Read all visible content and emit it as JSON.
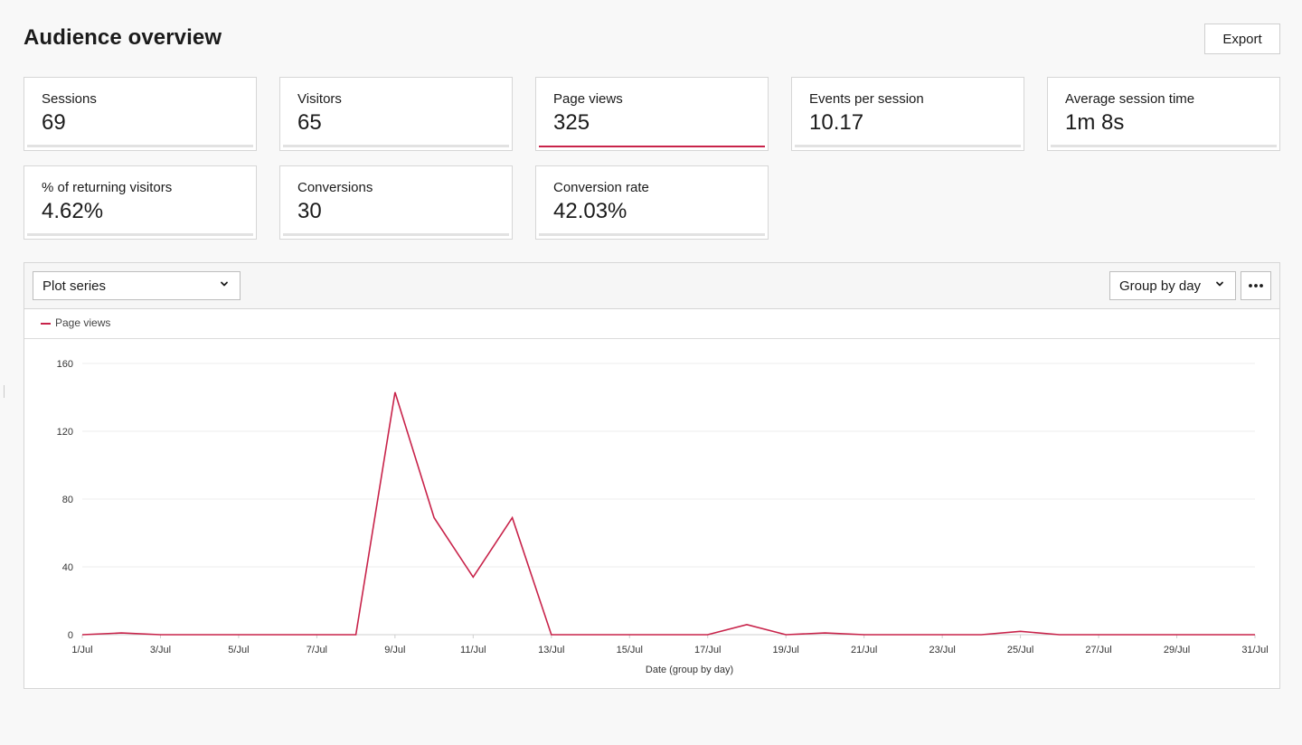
{
  "page": {
    "title": "Audience overview",
    "export_label": "Export"
  },
  "stats": [
    {
      "label": "Sessions",
      "value": "69"
    },
    {
      "label": "Visitors",
      "value": "65"
    },
    {
      "label": "Page views",
      "value": "325",
      "active": true
    },
    {
      "label": "Events per session",
      "value": "10.17"
    },
    {
      "label": "Average session time",
      "value": "1m 8s"
    },
    {
      "label": "% of returning visitors",
      "value": "4.62%"
    },
    {
      "label": "Conversions",
      "value": "30"
    },
    {
      "label": "Conversion rate",
      "value": "42.03%"
    }
  ],
  "toolbar": {
    "plot_series_label": "Plot series",
    "group_by_label": "Group by day"
  },
  "colors": {
    "accent": "#c8234a",
    "grid": "#ececec",
    "card_bar": "#e2e2e2"
  },
  "chart_data": {
    "type": "line",
    "xlabel": "Date (group by day)",
    "ylabel": "",
    "ylim": [
      0,
      160
    ],
    "yticks": [
      0,
      40,
      80,
      120,
      160
    ],
    "grid": true,
    "legend_position": "top-left",
    "x_tick_labels": [
      "1/Jul",
      "3/Jul",
      "5/Jul",
      "7/Jul",
      "9/Jul",
      "11/Jul",
      "13/Jul",
      "15/Jul",
      "17/Jul",
      "19/Jul",
      "21/Jul",
      "23/Jul",
      "25/Jul",
      "27/Jul",
      "29/Jul",
      "31/Jul"
    ],
    "x": [
      "1/Jul",
      "2/Jul",
      "3/Jul",
      "4/Jul",
      "5/Jul",
      "6/Jul",
      "7/Jul",
      "8/Jul",
      "9/Jul",
      "10/Jul",
      "11/Jul",
      "12/Jul",
      "13/Jul",
      "14/Jul",
      "15/Jul",
      "16/Jul",
      "17/Jul",
      "18/Jul",
      "19/Jul",
      "20/Jul",
      "21/Jul",
      "22/Jul",
      "23/Jul",
      "24/Jul",
      "25/Jul",
      "26/Jul",
      "27/Jul",
      "28/Jul",
      "29/Jul",
      "30/Jul",
      "31/Jul"
    ],
    "series": [
      {
        "name": "Page views",
        "values": [
          0,
          1,
          0,
          0,
          0,
          0,
          0,
          0,
          143,
          69,
          34,
          69,
          0,
          0,
          0,
          0,
          0,
          6,
          0,
          1,
          0,
          0,
          0,
          0,
          2,
          0,
          0,
          0,
          0,
          0,
          0
        ]
      }
    ]
  }
}
